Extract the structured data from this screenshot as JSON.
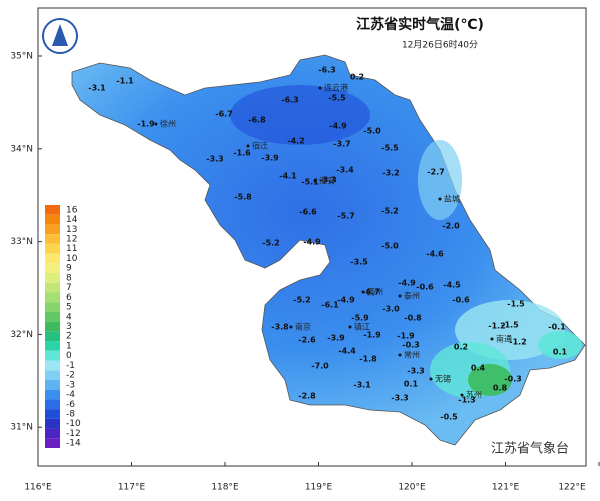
{
  "header": {
    "title": "江苏省实时气温(℃)",
    "subtitle": "12月26日6时40分"
  },
  "axes": {
    "lat": [
      "35°N",
      "34°N",
      "33°N",
      "32°N",
      "31°N"
    ],
    "lon": [
      "116°E",
      "117°E",
      "118°E",
      "119°E",
      "120°E",
      "121°E",
      "122°E"
    ]
  },
  "legend": [
    {
      "label": "16",
      "color": "#f26b0f"
    },
    {
      "label": "14",
      "color": "#f5870f"
    },
    {
      "label": "13",
      "color": "#f8a020"
    },
    {
      "label": "12",
      "color": "#fbbf35"
    },
    {
      "label": "11",
      "color": "#fcd54c"
    },
    {
      "label": "10",
      "color": "#fbe76c"
    },
    {
      "label": "9",
      "color": "#f3f07f"
    },
    {
      "label": "8",
      "color": "#dcee7c"
    },
    {
      "label": "7",
      "color": "#c2e678"
    },
    {
      "label": "6",
      "color": "#a5de72"
    },
    {
      "label": "5",
      "color": "#86d46a"
    },
    {
      "label": "4",
      "color": "#62c863"
    },
    {
      "label": "3",
      "color": "#3dbb5e"
    },
    {
      "label": "2",
      "color": "#27c07e"
    },
    {
      "label": "1",
      "color": "#2bd4a6"
    },
    {
      "label": "0",
      "color": "#5fe6d8"
    },
    {
      "label": "-1",
      "color": "#9be6f2"
    },
    {
      "label": "-2",
      "color": "#80cff4"
    },
    {
      "label": "-3",
      "color": "#5fb3f2"
    },
    {
      "label": "-4",
      "color": "#3b8fee"
    },
    {
      "label": "-6",
      "color": "#2a6de6"
    },
    {
      "label": "-8",
      "color": "#1f4ed8"
    },
    {
      "label": "-10",
      "color": "#2a34c4"
    },
    {
      "label": "-12",
      "color": "#4a26c4"
    },
    {
      "label": "-14",
      "color": "#6a1fc4"
    }
  ],
  "cities": [
    "徐州",
    "连云港",
    "宿迁",
    "淮安",
    "盐城",
    "扬州",
    "泰州",
    "南京",
    "镇江",
    "南通",
    "常州",
    "无锡",
    "苏州"
  ],
  "temps": [
    "-3.1",
    "-1.1",
    "-1.9",
    "-6.7",
    "-6.8",
    "-6.3",
    "-6.3",
    "0.2",
    "-5.5",
    "-4.9",
    "-5.0",
    "-3.7",
    "-5.5",
    "-4.2",
    "-3.3",
    "-1.6",
    "-3.9",
    "-4.1",
    "-5.1",
    "-3.3",
    "-3.4",
    "-3.2",
    "-2.7",
    "-5.8",
    "-6.6",
    "-5.7",
    "-5.2",
    "-2.0",
    "-5.2",
    "-4.9",
    "-5.0",
    "-4.6",
    "-3.5",
    "-4.9",
    "-0.6",
    "-4.5",
    "-0.6",
    "-1.5",
    "-5.2",
    "-6.1",
    "-4.9",
    "-6.7",
    "-5.9",
    "-3.0",
    "-0.8",
    "-1.2",
    "-1.5",
    "-0.1",
    "-3.8",
    "-2.6",
    "-3.9",
    "-1.9",
    "-1.9",
    "-0.3",
    "0.2",
    "-1.2",
    "0.1",
    "-4.4",
    "-1.8",
    "-7.0",
    "-3.3",
    "0.1",
    "0.4",
    "-0.3",
    "-3.1",
    "0.8",
    "-1.3",
    "-2.8",
    "-3.3",
    "-0.5"
  ],
  "credit": "江苏省气象台"
}
